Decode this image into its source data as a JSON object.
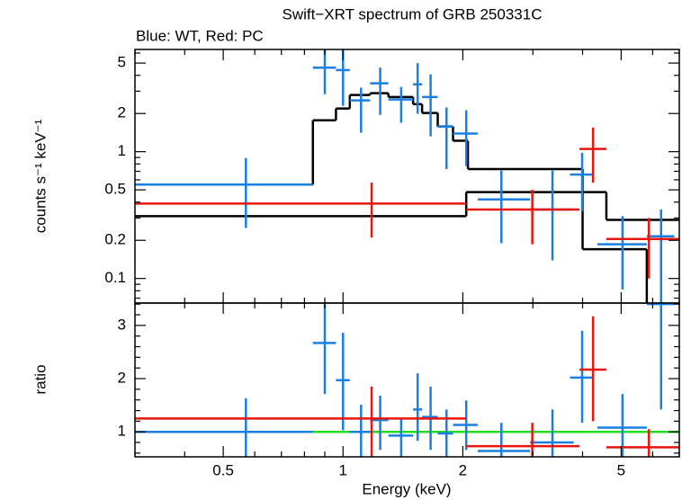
{
  "chart_data": [
    {
      "type": "spectrum",
      "title": "Swift−XRT spectrum of GRB 250331C",
      "subtitle": "Blue: WT, Red: PC",
      "ylabel": "counts s⁻¹ keV⁻¹",
      "xlog": true,
      "ylog": true,
      "xlim": [
        0.3,
        7.0
      ],
      "ylim": [
        0.064,
        6.4
      ],
      "xticks": [
        0.5,
        1,
        2,
        5
      ],
      "xminor": [
        0.3,
        0.4,
        0.6,
        0.7,
        0.8,
        0.9,
        3,
        4,
        6,
        7
      ],
      "yticks": [
        0.1,
        0.2,
        0.5,
        1,
        2,
        5
      ],
      "yminor": [
        0.07,
        0.08,
        0.09,
        0.3,
        0.4,
        0.6,
        0.7,
        0.8,
        0.9,
        3,
        4,
        6
      ],
      "series": [
        {
          "color": "#1a7fe0",
          "x": [
            0.57,
            0.9,
            1.0,
            1.11,
            1.24,
            1.4,
            1.54,
            1.66,
            1.82,
            2.04,
            2.5,
            3.36,
            3.99,
            5.04,
            6.3
          ],
          "xlow": [
            0.3,
            0.84,
            0.96,
            1.04,
            1.17,
            1.3,
            1.5,
            1.58,
            1.73,
            1.89,
            2.18,
            2.95,
            3.72,
            4.36,
            5.8
          ],
          "xhigh": [
            0.84,
            0.96,
            1.04,
            1.17,
            1.3,
            1.5,
            1.58,
            1.73,
            1.89,
            2.18,
            2.95,
            3.8,
            4.25,
            5.8,
            6.8
          ],
          "values": [
            0.55,
            4.6,
            4.4,
            2.54,
            3.46,
            2.58,
            3.4,
            2.7,
            1.58,
            1.39,
            0.42,
            0.35,
            0.66,
            0.186,
            0.215
          ],
          "ylow": [
            0.25,
            2.84,
            2.3,
            1.41,
            1.95,
            1.69,
            1.99,
            1.32,
            0.73,
            0.77,
            0.19,
            0.139,
            0.34,
            0.082,
            0.06
          ],
          "yhigh": [
            0.89,
            6.5,
            6.8,
            3.2,
            4.6,
            3.24,
            5.0,
            4.07,
            2.23,
            2.12,
            0.71,
            0.71,
            0.98,
            0.31,
            0.35
          ]
        },
        {
          "color": "#e8160c",
          "x": [
            1.18,
            2.99,
            4.25,
            5.87
          ],
          "xlow": [
            0.3,
            2.04,
            3.93,
            4.59
          ],
          "xhigh": [
            2.04,
            3.93,
            4.59,
            7.0
          ],
          "values": [
            0.39,
            0.35,
            1.05,
            0.205
          ],
          "ylow": [
            0.21,
            0.186,
            0.57,
            0.1
          ],
          "yhigh": [
            0.57,
            0.5,
            1.55,
            0.3
          ]
        }
      ],
      "models": [
        {
          "color": "#000000",
          "edges": [
            0.3,
            0.84,
            0.96,
            1.04,
            1.17,
            1.3,
            1.5,
            1.58,
            1.73,
            1.89,
            2.06,
            4.0,
            5.8,
            7.0
          ],
          "values": [
            0.55,
            1.77,
            2.19,
            2.8,
            2.89,
            2.7,
            2.37,
            2.02,
            1.58,
            1.22,
            0.73,
            0.17,
            0.063
          ]
        },
        {
          "color": "#000000",
          "edges": [
            0.3,
            2.04,
            4.59,
            7.0
          ],
          "values": [
            0.31,
            0.48,
            0.29
          ]
        }
      ]
    },
    {
      "type": "ratio",
      "ylabel": "ratio",
      "xlabel": "Energy (keV)",
      "xlog": true,
      "ylog": false,
      "xlim": [
        0.3,
        7.0
      ],
      "ylim": [
        0.53,
        3.42
      ],
      "xticks": [
        0.5,
        1,
        2,
        5
      ],
      "xminor": [
        0.3,
        0.4,
        0.6,
        0.7,
        0.8,
        0.9,
        3,
        4,
        6,
        7
      ],
      "yticks": [
        1,
        2,
        3
      ],
      "yminor": [
        0.6,
        0.8,
        1.2,
        1.4,
        1.6,
        1.8,
        2.2,
        2.4,
        2.6,
        2.8,
        3.2,
        3.4
      ],
      "reference": {
        "value": 1,
        "color": "#22dd22"
      },
      "series": [
        {
          "color": "#1a7fe0",
          "x": [
            0.57,
            0.9,
            1.0,
            1.11,
            1.24,
            1.4,
            1.54,
            1.66,
            1.82,
            2.04,
            2.5,
            3.36,
            3.99,
            5.04,
            6.3
          ],
          "xlow": [
            0.3,
            0.84,
            0.96,
            1.04,
            1.17,
            1.3,
            1.5,
            1.58,
            1.73,
            1.89,
            2.18,
            2.95,
            3.72,
            4.36,
            5.8
          ],
          "xhigh": [
            0.84,
            0.96,
            1.04,
            1.17,
            1.3,
            1.5,
            1.58,
            1.73,
            1.89,
            2.18,
            2.95,
            3.8,
            4.25,
            5.8,
            6.8
          ],
          "values": [
            1.0,
            2.67,
            1.97,
            1.0,
            1.22,
            0.93,
            1.42,
            1.28,
            0.97,
            1.13,
            0.64,
            0.8,
            2.02,
            1.08,
            3.4
          ],
          "ylow": [
            0.53,
            1.71,
            1.03,
            0.53,
            0.66,
            0.53,
            0.83,
            0.66,
            0.53,
            0.66,
            0.53,
            0.53,
            1.17,
            0.53,
            1.42
          ],
          "yhigh": [
            1.63,
            3.44,
            2.86,
            1.51,
            1.68,
            1.25,
            2.1,
            1.85,
            1.42,
            1.59,
            1.17,
            1.42,
            2.9,
            1.71,
            3.5
          ]
        },
        {
          "color": "#e8160c",
          "x": [
            1.18,
            2.99,
            4.25,
            5.87
          ],
          "xlow": [
            0.3,
            2.04,
            3.93,
            4.59
          ],
          "xhigh": [
            2.04,
            3.93,
            4.59,
            7.0
          ],
          "values": [
            1.25,
            0.73,
            2.17,
            0.71
          ],
          "ylow": [
            0.53,
            0.53,
            1.2,
            0.53
          ],
          "yhigh": [
            1.85,
            1.17,
            3.17,
            1.05
          ]
        }
      ]
    }
  ]
}
